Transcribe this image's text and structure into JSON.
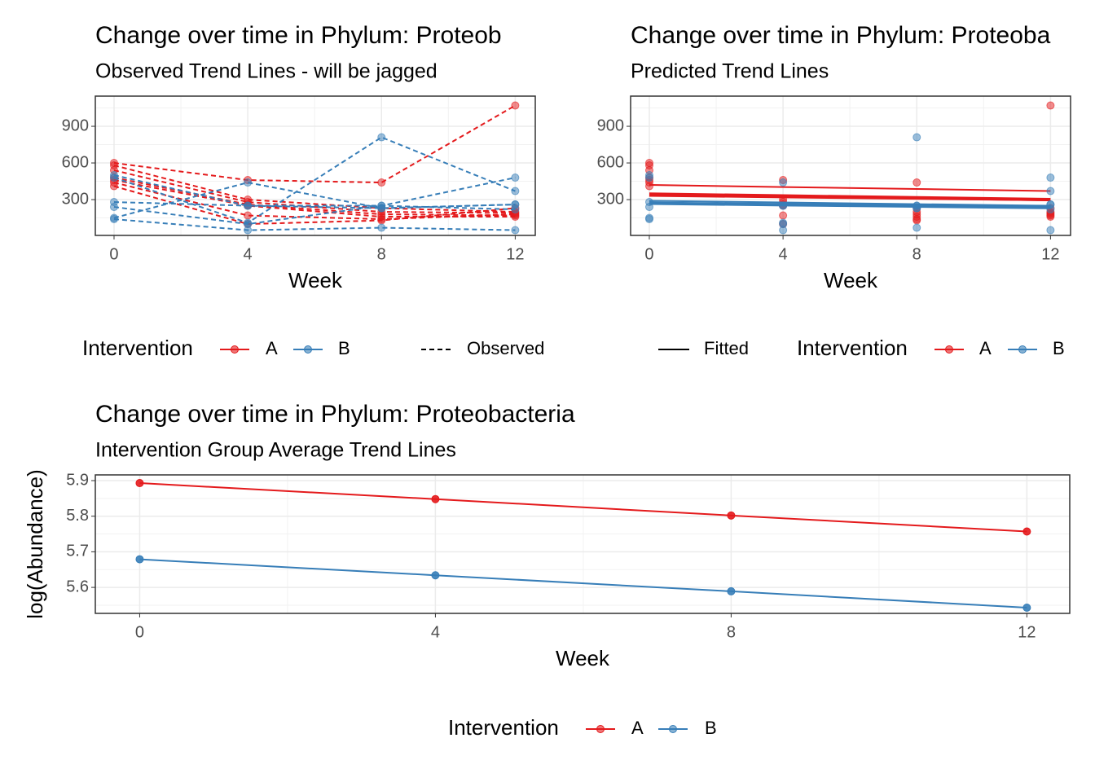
{
  "chart_data": [
    {
      "type": "observed",
      "title": "Change over time in Phylum: Proteob",
      "subtitle": "Observed Trend Lines - will be jagged",
      "x_label": "Week",
      "x": [
        0,
        4,
        8,
        12
      ],
      "xlim": [
        -0.56,
        12.6
      ],
      "xticks": [
        0,
        4,
        8,
        12
      ],
      "ylim": [
        7,
        1147
      ],
      "yticks": [
        300,
        600,
        900
      ],
      "grid": true,
      "legend_title": "Intervention",
      "linetype_label": "Observed",
      "series": [
        {
          "name": "A",
          "color": "#e41a1c",
          "subjects": [
            [
              600,
              460,
              440,
              1070
            ],
            [
              580,
              300,
              230,
              200
            ],
            [
              540,
              280,
              200,
              190
            ],
            [
              480,
              260,
              180,
              170
            ],
            [
              460,
              250,
              160,
              160
            ],
            [
              440,
              170,
              140,
              180
            ],
            [
              410,
              100,
              130,
              230
            ]
          ]
        },
        {
          "name": "B",
          "color": "#377eb8",
          "subjects": [
            [
              500,
              250,
              250,
              480
            ],
            [
              480,
              110,
              810,
              370
            ],
            [
              280,
              250,
              230,
              260
            ],
            [
              240,
              100,
              250,
              220
            ],
            [
              150,
              440,
              230,
              260
            ],
            [
              140,
              50,
              70,
              50
            ]
          ]
        }
      ]
    },
    {
      "type": "fitted",
      "title": "Change over time in Phylum: Proteoba",
      "subtitle": "Predicted Trend Lines",
      "x_label": "Week",
      "x": [
        0,
        4,
        8,
        12
      ],
      "xlim": [
        -0.56,
        12.6
      ],
      "xticks": [
        0,
        4,
        8,
        12
      ],
      "ylim": [
        7,
        1147
      ],
      "yticks": [
        300,
        600,
        900
      ],
      "grid": true,
      "legend_title": "Intervention",
      "linetype_label": "Fitted",
      "series": [
        {
          "name": "A",
          "color": "#e41a1c",
          "points": [
            [
              600,
              460,
              440,
              1070
            ],
            [
              580,
              300,
              230,
              200
            ],
            [
              540,
              280,
              200,
              190
            ],
            [
              480,
              260,
              180,
              170
            ],
            [
              460,
              250,
              160,
              160
            ],
            [
              440,
              170,
              140,
              180
            ],
            [
              410,
              100,
              130,
              230
            ]
          ],
          "fitted": [
            [
              420,
              403,
              387,
              370
            ],
            [
              345,
              330,
              315,
              300
            ],
            [
              330,
              318,
              306,
              294
            ]
          ]
        },
        {
          "name": "B",
          "color": "#377eb8",
          "points": [
            [
              500,
              250,
              250,
              480
            ],
            [
              480,
              110,
              810,
              370
            ],
            [
              280,
              250,
              230,
              260
            ],
            [
              240,
              100,
              250,
              220
            ],
            [
              150,
              440,
              230,
              260
            ],
            [
              140,
              50,
              70,
              50
            ]
          ],
          "fitted": [
            [
              290,
              277,
              263,
              250
            ],
            [
              270,
              258,
              247,
              235
            ]
          ]
        }
      ]
    },
    {
      "type": "line",
      "title": "Change over time in Phylum: Proteobacteria",
      "subtitle": "Intervention Group Average Trend Lines",
      "x_label": "Week",
      "y_label": "log(Abundance)",
      "x": [
        0,
        4,
        8,
        12
      ],
      "xlim": [
        -0.6,
        12.58
      ],
      "xticks": [
        0,
        4,
        8,
        12
      ],
      "ylim": [
        5.527,
        5.916
      ],
      "yticks": [
        5.6,
        5.7,
        5.8,
        5.9
      ],
      "grid": true,
      "legend_title": "Intervention",
      "series": [
        {
          "name": "A",
          "color": "#e41a1c",
          "values": [
            5.893,
            5.848,
            5.802,
            5.757
          ]
        },
        {
          "name": "B",
          "color": "#377eb8",
          "values": [
            5.679,
            5.634,
            5.589,
            5.543
          ]
        }
      ]
    }
  ]
}
